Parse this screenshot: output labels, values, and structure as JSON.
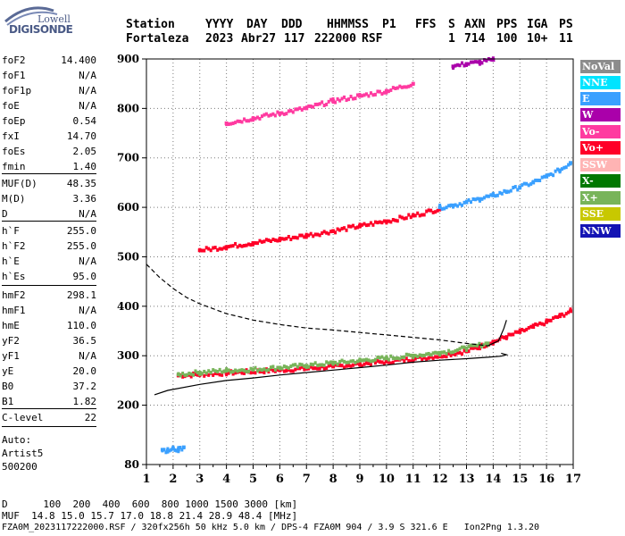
{
  "logo": {
    "line1": "Lowell",
    "line2": "DIGISONDE"
  },
  "header": {
    "labels": [
      "Station",
      "YYYY",
      "DAY",
      "DDD",
      "HHMMSS",
      "P1",
      "FFS",
      "S",
      "AXN",
      "PPS",
      "IGA",
      "PS"
    ],
    "values": [
      "Fortaleza",
      "2023",
      "Abr27",
      "117",
      "222000",
      "RSF",
      "",
      "1",
      "714",
      "100",
      "10+",
      "11"
    ]
  },
  "params": [
    {
      "name": "foF2",
      "value": "14.400"
    },
    {
      "name": "foF1",
      "value": "N/A"
    },
    {
      "name": "foF1p",
      "value": "N/A"
    },
    {
      "name": "foE",
      "value": "N/A"
    },
    {
      "name": "foEp",
      "value": "0.54"
    },
    {
      "name": "fxI",
      "value": "14.70"
    },
    {
      "name": "foEs",
      "value": "2.05"
    },
    {
      "name": "fmin",
      "value": "1.40"
    },
    {
      "name": "MUF(D)",
      "value": "48.35"
    },
    {
      "name": "M(D)",
      "value": "3.36"
    },
    {
      "name": "D",
      "value": "N/A"
    },
    {
      "name": "h`F",
      "value": "255.0"
    },
    {
      "name": "h`F2",
      "value": "255.0"
    },
    {
      "name": "h`E",
      "value": "N/A"
    },
    {
      "name": "h`Es",
      "value": "95.0"
    },
    {
      "name": "hmF2",
      "value": "298.1"
    },
    {
      "name": "hmF1",
      "value": "N/A"
    },
    {
      "name": "hmE",
      "value": "110.0"
    },
    {
      "name": "yF2",
      "value": "36.5"
    },
    {
      "name": "yF1",
      "value": "N/A"
    },
    {
      "name": "yE",
      "value": "20.0"
    },
    {
      "name": "B0",
      "value": "37.2"
    },
    {
      "name": "B1",
      "value": "1.82"
    },
    {
      "name": "C-level",
      "value": "22"
    }
  ],
  "auto": {
    "line1": "Auto:",
    "line2": "Artist5",
    "line3": "500200"
  },
  "legend": [
    {
      "label": "NoVal",
      "color": "#8c8c8c"
    },
    {
      "label": "NNE",
      "color": "#00e4ff"
    },
    {
      "label": "E",
      "color": "#3aa0ff"
    },
    {
      "label": "W",
      "color": "#aa00aa"
    },
    {
      "label": "Vo-",
      "color": "#ff3aa0"
    },
    {
      "label": "Vo+",
      "color": "#ff0028"
    },
    {
      "label": "SSW",
      "color": "#ffb4b4"
    },
    {
      "label": "X-",
      "color": "#007800"
    },
    {
      "label": "X+",
      "color": "#78b45a"
    },
    {
      "label": "SSE",
      "color": "#c8c800"
    },
    {
      "label": "NNW",
      "color": "#1414b4"
    }
  ],
  "footer": {
    "line1": "D      100  200  400  600  800 1000 1500 3000 [km]",
    "line2": "MUF  14.8 15.0 15.7 17.0 18.8 21.4 28.9 48.4 [MHz]",
    "line3": "FZA0M_2023117222000.RSF / 320fx256h 50 kHz 5.0 km / DPS-4 FZA0M 904 / 3.9 S 321.6 E   Ion2Png 1.3.20"
  },
  "chart_data": {
    "type": "scatter",
    "xlim": [
      1,
      17
    ],
    "ylim": [
      80,
      900
    ],
    "xticks": [
      1,
      2,
      3,
      4,
      5,
      6,
      7,
      8,
      9,
      10,
      11,
      12,
      13,
      14,
      15,
      16,
      17
    ],
    "yticks": [
      80,
      200,
      300,
      400,
      500,
      600,
      700,
      800,
      900
    ],
    "grid": true,
    "series": [
      {
        "trace": "F2 O-trace",
        "color": "#ff0028",
        "points": [
          [
            2.2,
            260
          ],
          [
            3.0,
            262
          ],
          [
            4.0,
            265
          ],
          [
            5.0,
            268
          ],
          [
            6.0,
            271
          ],
          [
            7.0,
            274
          ],
          [
            8.0,
            278
          ],
          [
            9.0,
            283
          ],
          [
            10.0,
            288
          ],
          [
            11.0,
            293
          ],
          [
            12.0,
            300
          ],
          [
            13.0,
            309
          ],
          [
            13.5,
            318
          ],
          [
            14.0,
            328
          ],
          [
            14.5,
            338
          ],
          [
            15.0,
            348
          ],
          [
            15.5,
            358
          ],
          [
            16.0,
            368
          ],
          [
            16.5,
            380
          ],
          [
            16.9,
            390
          ]
        ]
      },
      {
        "trace": "F2 X-trace",
        "color": "#78b45a",
        "points": [
          [
            2.2,
            262
          ],
          [
            3.0,
            266
          ],
          [
            4.0,
            270
          ],
          [
            5.0,
            272
          ],
          [
            6.0,
            276
          ],
          [
            7.0,
            280
          ],
          [
            8.0,
            285
          ],
          [
            9.0,
            290
          ],
          [
            10.0,
            295
          ],
          [
            11.0,
            300
          ],
          [
            12.0,
            306
          ],
          [
            13.0,
            315
          ],
          [
            13.8,
            325
          ]
        ]
      },
      {
        "trace": "2F O-trace",
        "color": "#ff0028",
        "points": [
          [
            3.0,
            513
          ],
          [
            4.0,
            520
          ],
          [
            5.0,
            528
          ],
          [
            6.0,
            535
          ],
          [
            7.0,
            543
          ],
          [
            8.0,
            552
          ],
          [
            9.0,
            562
          ],
          [
            10.0,
            572
          ],
          [
            11.0,
            583
          ],
          [
            12.0,
            597
          ]
        ]
      },
      {
        "trace": "2F oblique",
        "color": "#3aa0ff",
        "points": [
          [
            12.0,
            600
          ],
          [
            12.5,
            604
          ],
          [
            13.0,
            610
          ],
          [
            13.5,
            617
          ],
          [
            14.0,
            624
          ],
          [
            14.5,
            632
          ],
          [
            15.0,
            641
          ],
          [
            15.5,
            650
          ],
          [
            16.0,
            662
          ],
          [
            16.5,
            675
          ],
          [
            16.9,
            690
          ]
        ]
      },
      {
        "trace": "3F trace",
        "color": "#ff3aa0",
        "points": [
          [
            4.0,
            770
          ],
          [
            5.0,
            780
          ],
          [
            6.0,
            790
          ],
          [
            7.0,
            800
          ],
          [
            8.0,
            815
          ],
          [
            9.0,
            825
          ],
          [
            10.0,
            835
          ],
          [
            11.0,
            850
          ]
        ]
      },
      {
        "trace": "Es trace",
        "color": "#3aa0ff",
        "points": [
          [
            1.6,
            110
          ],
          [
            1.8,
            108
          ],
          [
            2.0,
            112
          ],
          [
            2.2,
            110
          ],
          [
            2.4,
            115
          ]
        ]
      },
      {
        "trace": "upper oblique",
        "color": "#aa00aa",
        "points": [
          [
            12.5,
            885
          ],
          [
            13.0,
            890
          ],
          [
            13.5,
            893
          ],
          [
            14.0,
            898
          ]
        ]
      }
    ],
    "profile_true_height": {
      "line": "solid",
      "points": [
        [
          1.3,
          221
        ],
        [
          1.8,
          230
        ],
        [
          3.0,
          242
        ],
        [
          4.0,
          250
        ],
        [
          5.0,
          255
        ],
        [
          6.0,
          261
        ],
        [
          7.0,
          266
        ],
        [
          8.0,
          271
        ],
        [
          9.0,
          276
        ],
        [
          10.0,
          281
        ],
        [
          11.0,
          287
        ],
        [
          12.0,
          291
        ],
        [
          13.0,
          294
        ],
        [
          13.8,
          297
        ],
        [
          14.3,
          299
        ],
        [
          14.5,
          302
        ],
        [
          14.3,
          305
        ]
      ]
    },
    "profile_model": {
      "line": "dashed",
      "points": [
        [
          1.0,
          485
        ],
        [
          1.5,
          458
        ],
        [
          2.0,
          436
        ],
        [
          2.5,
          418
        ],
        [
          3.0,
          405
        ],
        [
          4.0,
          385
        ],
        [
          5.0,
          372
        ],
        [
          6.0,
          363
        ],
        [
          7.0,
          356
        ],
        [
          8.0,
          352
        ],
        [
          9.0,
          347
        ],
        [
          10.0,
          342
        ],
        [
          11.0,
          337
        ],
        [
          12.0,
          332
        ],
        [
          13.0,
          325
        ],
        [
          13.8,
          320
        ]
      ]
    },
    "extrapolation": {
      "line": "solid",
      "points": [
        [
          13.8,
          320
        ],
        [
          14.2,
          330
        ],
        [
          14.4,
          355
        ],
        [
          14.5,
          372
        ]
      ]
    }
  }
}
